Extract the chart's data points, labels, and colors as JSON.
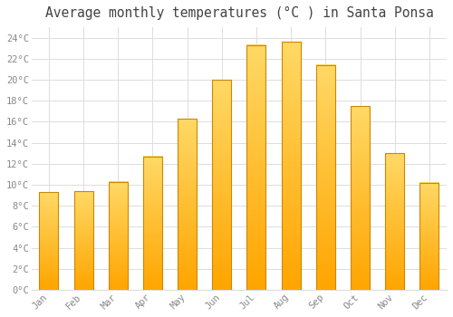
{
  "title": "Average monthly temperatures (°C ) in Santa Ponsa",
  "months": [
    "Jan",
    "Feb",
    "Mar",
    "Apr",
    "May",
    "Jun",
    "Jul",
    "Aug",
    "Sep",
    "Oct",
    "Nov",
    "Dec"
  ],
  "temperatures": [
    9.3,
    9.4,
    10.3,
    12.7,
    16.3,
    20.0,
    23.3,
    23.6,
    21.4,
    17.5,
    13.0,
    10.2
  ],
  "bar_color_top": "#FFD966",
  "bar_color_bottom": "#FFA500",
  "bar_edge_color": "#CC8800",
  "background_color": "#FFFFFF",
  "grid_color": "#DDDDDD",
  "title_color": "#444444",
  "tick_label_color": "#888888",
  "ylim": [
    0,
    25
  ],
  "yticks": [
    0,
    2,
    4,
    6,
    8,
    10,
    12,
    14,
    16,
    18,
    20,
    22,
    24
  ],
  "title_fontsize": 10.5,
  "bar_width": 0.55
}
